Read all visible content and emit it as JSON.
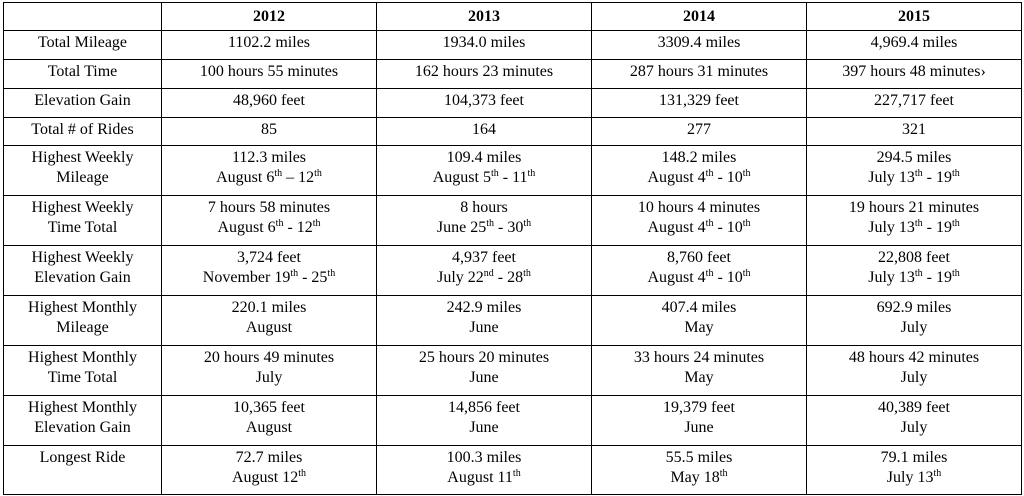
{
  "table": {
    "years": [
      "2012",
      "2013",
      "2014",
      "2015"
    ],
    "rows": [
      {
        "label": [
          "Total Mileage"
        ],
        "cells": [
          [
            [
              "1102.2 miles"
            ]
          ],
          [
            [
              "1934.0 miles"
            ]
          ],
          [
            [
              "3309.4 miles"
            ]
          ],
          [
            [
              "4,969.4 miles"
            ]
          ]
        ]
      },
      {
        "label": [
          "Total Time"
        ],
        "cells": [
          [
            [
              "100 hours 55 minutes"
            ]
          ],
          [
            [
              "162 hours 23 minutes"
            ]
          ],
          [
            [
              "287 hours 31 minutes"
            ]
          ],
          [
            [
              "397 hours 48 minutes›"
            ]
          ]
        ]
      },
      {
        "label": [
          "Elevation Gain"
        ],
        "cells": [
          [
            [
              "48,960 feet"
            ]
          ],
          [
            [
              "104,373 feet"
            ]
          ],
          [
            [
              "131,329 feet"
            ]
          ],
          [
            [
              "227,717 feet"
            ]
          ]
        ]
      },
      {
        "label": [
          "Total # of Rides"
        ],
        "cells": [
          [
            [
              "85"
            ]
          ],
          [
            [
              "164"
            ]
          ],
          [
            [
              "277"
            ]
          ],
          [
            [
              "321"
            ]
          ]
        ]
      },
      {
        "label": [
          "Highest Weekly",
          "Mileage"
        ],
        "cells": [
          [
            [
              "112.3 miles"
            ],
            [
              "August 6",
              "th",
              " – 12",
              "th"
            ]
          ],
          [
            [
              "109.4 miles"
            ],
            [
              "August 5",
              "th",
              " - 11",
              "th"
            ]
          ],
          [
            [
              "148.2 miles"
            ],
            [
              "August 4",
              "th",
              " - 10",
              "th"
            ]
          ],
          [
            [
              "294.5 miles"
            ],
            [
              "July 13",
              "th",
              " - 19",
              "th"
            ]
          ]
        ]
      },
      {
        "label": [
          "Highest Weekly",
          "Time Total"
        ],
        "cells": [
          [
            [
              "7 hours 58 minutes"
            ],
            [
              "August 6",
              "th",
              " - 12",
              "th"
            ]
          ],
          [
            [
              "8 hours"
            ],
            [
              "June 25",
              "th",
              " - 30",
              "th"
            ]
          ],
          [
            [
              "10 hours 4 minutes"
            ],
            [
              "August 4",
              "th",
              " - 10",
              "th"
            ]
          ],
          [
            [
              "19 hours 21 minutes"
            ],
            [
              "July 13",
              "th",
              " - 19",
              "th"
            ]
          ]
        ]
      },
      {
        "label": [
          "Highest Weekly",
          "Elevation Gain"
        ],
        "cells": [
          [
            [
              "3,724 feet"
            ],
            [
              "November 19",
              "th",
              " - 25",
              "th"
            ]
          ],
          [
            [
              "4,937 feet"
            ],
            [
              "July 22",
              "nd",
              " - 28",
              "th"
            ]
          ],
          [
            [
              "8,760 feet"
            ],
            [
              "August 4",
              "th",
              " - 10",
              "th"
            ]
          ],
          [
            [
              "22,808 feet"
            ],
            [
              "July 13",
              "th",
              " - 19",
              "th"
            ]
          ]
        ]
      },
      {
        "label": [
          "Highest Monthly",
          "Mileage"
        ],
        "cells": [
          [
            [
              "220.1 miles"
            ],
            [
              "August"
            ]
          ],
          [
            [
              "242.9 miles"
            ],
            [
              "June"
            ]
          ],
          [
            [
              "407.4 miles"
            ],
            [
              "May"
            ]
          ],
          [
            [
              "692.9 miles"
            ],
            [
              "July"
            ]
          ]
        ]
      },
      {
        "label": [
          "Highest Monthly",
          "Time Total"
        ],
        "cells": [
          [
            [
              "20 hours 49 minutes"
            ],
            [
              "July"
            ]
          ],
          [
            [
              "25 hours 20 minutes"
            ],
            [
              "June"
            ]
          ],
          [
            [
              "33 hours 24 minutes"
            ],
            [
              "May"
            ]
          ],
          [
            [
              "48 hours 42 minutes"
            ],
            [
              "July"
            ]
          ]
        ]
      },
      {
        "label": [
          "Highest Monthly",
          "Elevation Gain"
        ],
        "cells": [
          [
            [
              "10,365 feet"
            ],
            [
              "August"
            ]
          ],
          [
            [
              "14,856 feet"
            ],
            [
              "June"
            ]
          ],
          [
            [
              "19,379 feet"
            ],
            [
              "June"
            ]
          ],
          [
            [
              "40,389 feet"
            ],
            [
              "July"
            ]
          ]
        ]
      },
      {
        "label": [
          "Longest Ride"
        ],
        "cells": [
          [
            [
              "72.7 miles"
            ],
            [
              "August 12",
              "th"
            ]
          ],
          [
            [
              "100.3 miles"
            ],
            [
              "August 11",
              "th"
            ]
          ],
          [
            [
              "55.5 miles"
            ],
            [
              "May 18",
              "th"
            ]
          ],
          [
            [
              "79.1 miles"
            ],
            [
              "July 13",
              "th"
            ]
          ]
        ]
      }
    ]
  }
}
